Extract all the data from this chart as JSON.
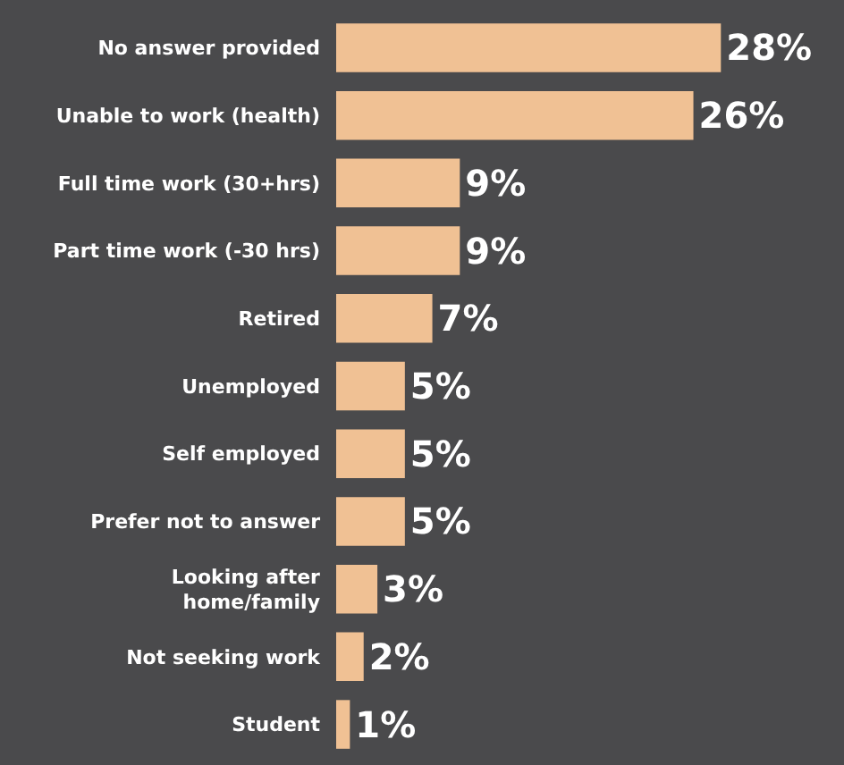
{
  "chart_data": {
    "type": "bar",
    "orientation": "horizontal",
    "categories": [
      "No answer provided",
      "Unable to work (health)",
      "Full time work (30+hrs)",
      "Part time work (-30 hrs)",
      "Retired",
      "Unemployed",
      "Self employed",
      "Prefer not to answer",
      "Looking after\nhome/family",
      "Not seeking work",
      "Student"
    ],
    "values": [
      28,
      26,
      9,
      9,
      7,
      5,
      5,
      5,
      3,
      2,
      1
    ],
    "value_labels": [
      "28%",
      "26%",
      "9%",
      "9%",
      "7%",
      "5%",
      "5%",
      "5%",
      "3%",
      "2%",
      "1%"
    ],
    "color": "#f0c194"
  }
}
